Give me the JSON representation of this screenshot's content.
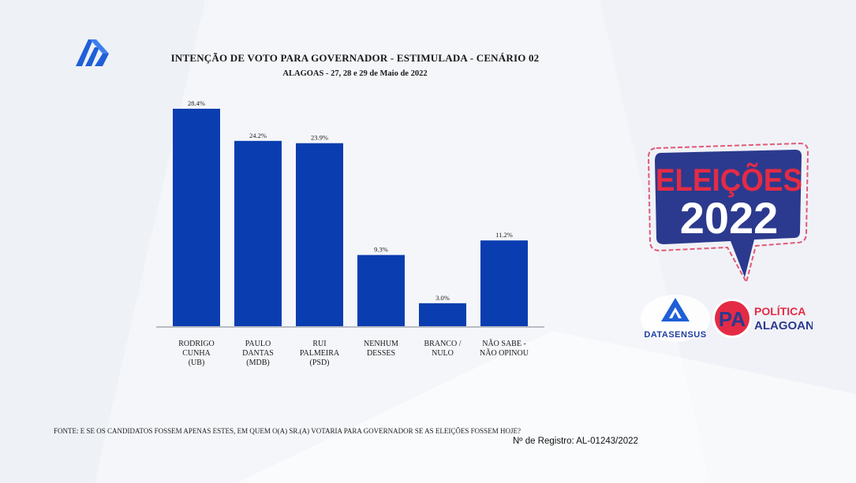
{
  "header": {
    "title": "INTENÇÃO DE VOTO PARA GOVERNADOR - ESTIMULADA - CENÁRIO 02",
    "subtitle": "ALAGOAS - 27, 28 e 29 de Maio de 2022"
  },
  "chart_data": {
    "type": "bar",
    "title": "INTENÇÃO DE VOTO PARA GOVERNADOR - ESTIMULADA - CENÁRIO 02",
    "subtitle": "ALAGOAS - 27, 28 e 29 de Maio de 2022",
    "categories": [
      [
        "RODRIGO",
        "CUNHA",
        "(UB)"
      ],
      [
        "PAULO",
        "DANTAS",
        "(MDB)"
      ],
      [
        "RUI",
        "PALMEIRA",
        "(PSD)"
      ],
      [
        "NENHUM",
        "DESSES"
      ],
      [
        "BRANCO /",
        "NULO"
      ],
      [
        "NÃO SABE  -",
        "NÃO OPINOU"
      ]
    ],
    "values": [
      28.4,
      24.2,
      23.9,
      9.3,
      3.0,
      11.2
    ],
    "value_labels": [
      "28.4%",
      "24.2%",
      "23.9%",
      "9.3%",
      "3.0%",
      "11.2%"
    ],
    "xlabel": "",
    "ylabel": "",
    "ylim": [
      0,
      30
    ],
    "grid": false,
    "bar_color": "#0a3db0"
  },
  "footer": {
    "source": "FONTE: E SE OS CANDIDATOS FOSSEM APENAS ESTES, EM QUEM O(A) SR.(A) VOTARIA PARA GOVERNADOR SE AS ELEIÇÕES FOSSEM HOJE?",
    "registro": "Nº de Registro: AL-01243/2022"
  },
  "badge": {
    "line1": "ELEIÇÕES",
    "line2": "2022"
  },
  "logos": {
    "datasensus": "DATASENSUS",
    "pa_initials": "PA",
    "politica": "POLÍTICA",
    "alagoana": "ALAGOANA"
  }
}
